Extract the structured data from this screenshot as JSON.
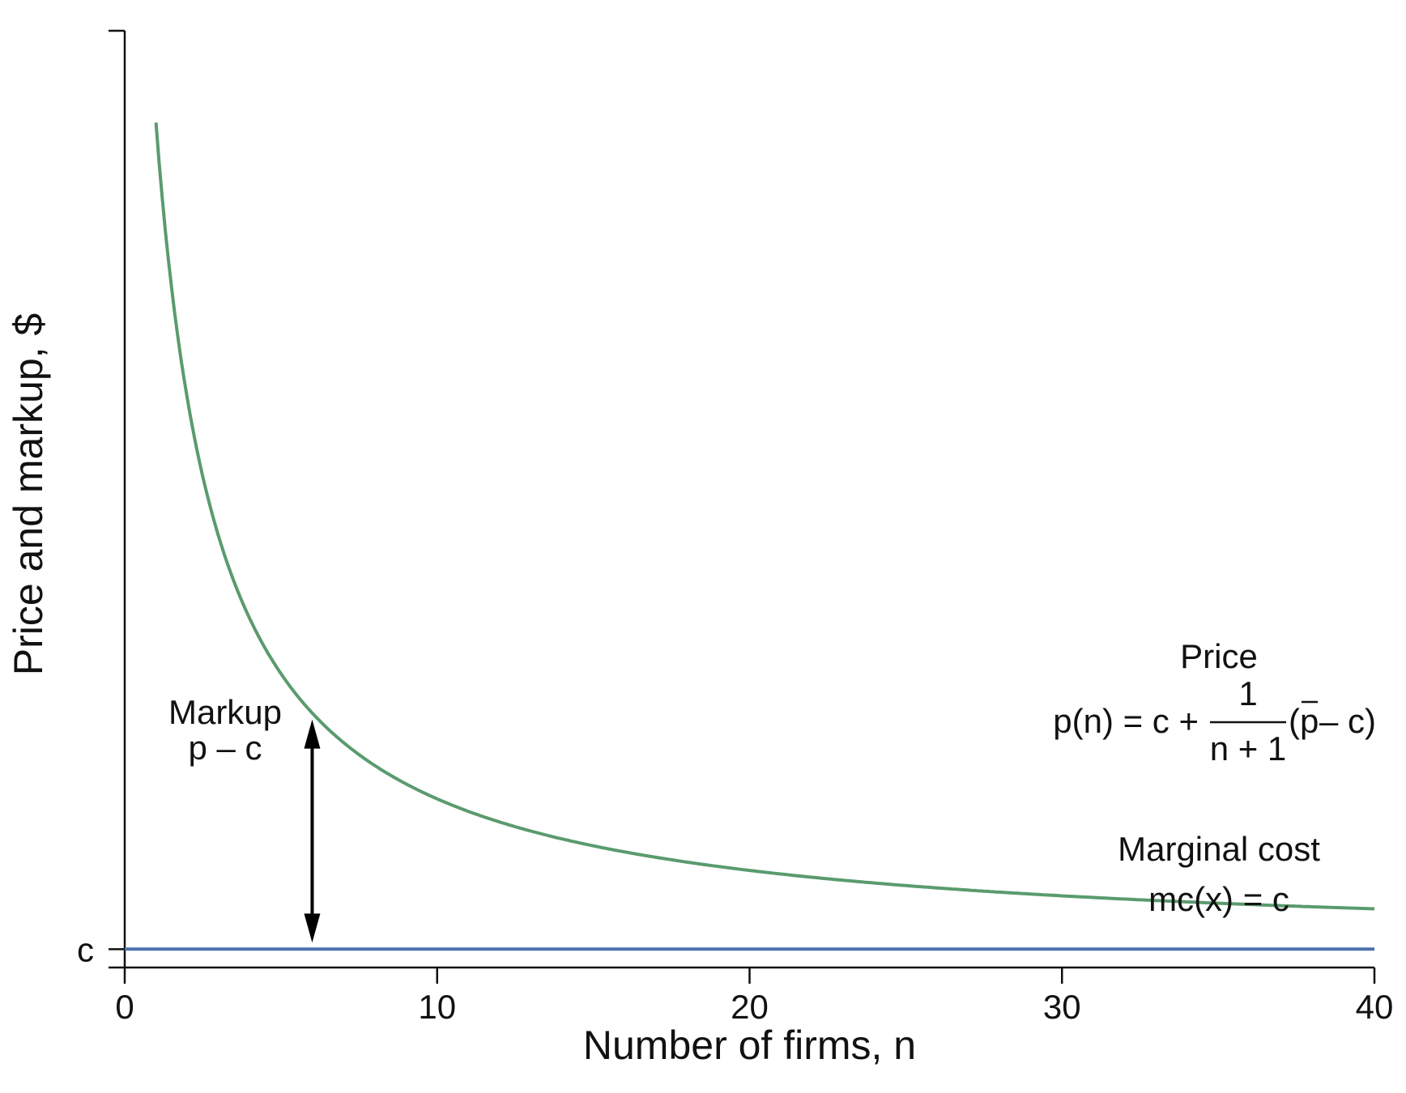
{
  "chart_data": {
    "type": "line",
    "title": "",
    "xlabel": "Number of firms, n",
    "ylabel": "Price and markup, $",
    "xlim": [
      0,
      40
    ],
    "ylim": [
      -0.5,
      25
    ],
    "x_ticks": [
      "0",
      "10",
      "20",
      "30",
      "40"
    ],
    "x_tick_values": [
      0,
      10,
      20,
      30,
      40
    ],
    "y_tick_labels": [
      "c"
    ],
    "y_tick_values": [
      0
    ],
    "grid": false,
    "series": [
      {
        "key": "price",
        "color": "#5a9b6e",
        "x": [
          1,
          1.5,
          2,
          3,
          4,
          5,
          6,
          7,
          8,
          10,
          12,
          15,
          20,
          25,
          30,
          35,
          40
        ],
        "y": [
          22.5,
          18.0,
          15.0,
          11.25,
          9.0,
          7.5,
          6.43,
          5.63,
          5.0,
          4.09,
          3.46,
          2.81,
          2.14,
          1.73,
          1.45,
          1.25,
          1.1
        ]
      },
      {
        "key": "marginal_cost",
        "color": "#4a72aa",
        "x": [
          0,
          40
        ],
        "y": [
          0,
          0
        ]
      }
    ],
    "annotations": {
      "price_label": "Price",
      "price_formula_lhs": "p(n) = c +",
      "price_formula_num": "1",
      "price_formula_den": "n + 1",
      "price_formula_rhs_open": "(",
      "price_formula_pbar": "p",
      "price_formula_rhs_rest": " – c)",
      "mc_label": "Marginal cost",
      "mc_formula": "mc(x) = c",
      "markup_label": "Markup",
      "markup_formula": "p – c",
      "markup_arrow_x": 6
    }
  }
}
